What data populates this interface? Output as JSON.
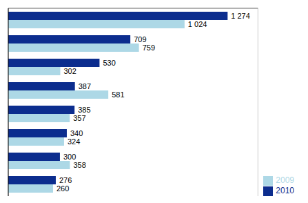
{
  "chart_data": {
    "type": "bar",
    "orientation": "horizontal",
    "categories": [
      null,
      null,
      null,
      null,
      null,
      null,
      null,
      null
    ],
    "series": [
      {
        "name": "2010",
        "color": "#0C2D8E",
        "values": [
          1274,
          709,
          530,
          387,
          385,
          340,
          300,
          276
        ],
        "value_labels": [
          "1 274",
          "709",
          "530",
          "387",
          "385",
          "340",
          "300",
          "276"
        ]
      },
      {
        "name": "2009",
        "color": "#ADD8E6",
        "values": [
          1024,
          759,
          302,
          581,
          357,
          324,
          358,
          260
        ],
        "value_labels": [
          "1 024",
          "759",
          "302",
          "581",
          "357",
          "324",
          "358",
          "260"
        ]
      }
    ],
    "xlim": [
      0,
      1450
    ],
    "xticks": [
      0,
      200,
      400,
      600,
      800,
      1000,
      1200,
      1400
    ],
    "grid": true,
    "legend": "lower right",
    "data_labels": true,
    "tick_labels": false
  }
}
